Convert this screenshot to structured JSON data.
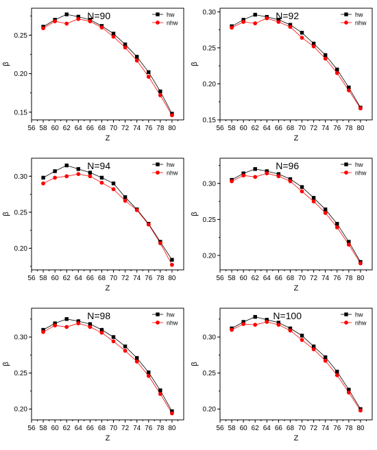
{
  "figure": {
    "legend_hw": "hw",
    "legend_nhw": "nhw",
    "xlabel": "Z",
    "ylabel": "β"
  },
  "chart_data": [
    {
      "type": "scatter",
      "title": "N=90",
      "xlabel": "Z",
      "ylabel": "β",
      "xlim": [
        56,
        82
      ],
      "ylim": [
        0.14,
        0.285
      ],
      "xticks": [
        56,
        58,
        60,
        62,
        64,
        66,
        68,
        70,
        72,
        74,
        76,
        78,
        80
      ],
      "yticks": [
        0.15,
        0.2,
        0.25
      ],
      "x": [
        58,
        60,
        62,
        64,
        66,
        68,
        70,
        72,
        74,
        76,
        78,
        80
      ],
      "series": [
        {
          "name": "hw",
          "color": "#000000",
          "marker": "square",
          "values": [
            0.261,
            0.27,
            0.277,
            0.274,
            0.27,
            0.262,
            0.252,
            0.238,
            0.222,
            0.202,
            0.177,
            0.148
          ]
        },
        {
          "name": "nhw",
          "color": "#ff0000",
          "marker": "circle",
          "values": [
            0.259,
            0.268,
            0.265,
            0.271,
            0.268,
            0.26,
            0.248,
            0.234,
            0.217,
            0.196,
            0.172,
            0.146
          ]
        }
      ],
      "legend": "top-right",
      "grid": false
    },
    {
      "type": "scatter",
      "title": "N=92",
      "xlabel": "Z",
      "ylabel": "β",
      "xlim": [
        56,
        82
      ],
      "ylim": [
        0.15,
        0.305
      ],
      "xticks": [
        56,
        58,
        60,
        62,
        64,
        66,
        68,
        70,
        72,
        74,
        76,
        78,
        80
      ],
      "yticks": [
        0.15,
        0.2,
        0.25,
        0.3
      ],
      "x": [
        58,
        60,
        62,
        64,
        66,
        68,
        70,
        72,
        74,
        76,
        78,
        80
      ],
      "series": [
        {
          "name": "hw",
          "color": "#000000",
          "marker": "square",
          "values": [
            0.28,
            0.289,
            0.296,
            0.293,
            0.289,
            0.282,
            0.271,
            0.256,
            0.24,
            0.22,
            0.195,
            0.167
          ]
        },
        {
          "name": "nhw",
          "color": "#ff0000",
          "marker": "circle",
          "values": [
            0.278,
            0.286,
            0.284,
            0.291,
            0.286,
            0.279,
            0.264,
            0.252,
            0.235,
            0.215,
            0.191,
            0.166
          ]
        }
      ],
      "legend": "top-right",
      "grid": false
    },
    {
      "type": "scatter",
      "title": "N=94",
      "xlabel": "Z",
      "ylabel": "β",
      "xlim": [
        56,
        82
      ],
      "ylim": [
        0.17,
        0.325
      ],
      "xticks": [
        56,
        58,
        60,
        62,
        64,
        66,
        68,
        70,
        72,
        74,
        76,
        78,
        80
      ],
      "yticks": [
        0.2,
        0.25,
        0.3
      ],
      "x": [
        58,
        60,
        62,
        64,
        66,
        68,
        70,
        72,
        74,
        76,
        78,
        80
      ],
      "series": [
        {
          "name": "hw",
          "color": "#000000",
          "marker": "square",
          "values": [
            0.298,
            0.307,
            0.315,
            0.31,
            0.305,
            0.298,
            0.29,
            0.271,
            0.254,
            0.234,
            0.209,
            0.184
          ]
        },
        {
          "name": "nhw",
          "color": "#ff0000",
          "marker": "circle",
          "values": [
            0.29,
            0.298,
            0.3,
            0.303,
            0.3,
            0.291,
            0.282,
            0.266,
            0.253,
            0.233,
            0.207,
            0.177
          ]
        }
      ],
      "legend": "top-right",
      "grid": false
    },
    {
      "type": "scatter",
      "title": "N=96",
      "xlabel": "Z",
      "ylabel": "β",
      "xlim": [
        56,
        82
      ],
      "ylim": [
        0.18,
        0.335
      ],
      "xticks": [
        56,
        58,
        60,
        62,
        64,
        66,
        68,
        70,
        72,
        74,
        76,
        78,
        80
      ],
      "yticks": [
        0.2,
        0.25,
        0.3
      ],
      "x": [
        58,
        60,
        62,
        64,
        66,
        68,
        70,
        72,
        74,
        76,
        78,
        80
      ],
      "series": [
        {
          "name": "hw",
          "color": "#000000",
          "marker": "square",
          "values": [
            0.305,
            0.314,
            0.32,
            0.317,
            0.313,
            0.306,
            0.295,
            0.28,
            0.264,
            0.244,
            0.219,
            0.191
          ]
        },
        {
          "name": "nhw",
          "color": "#ff0000",
          "marker": "circle",
          "values": [
            0.303,
            0.311,
            0.309,
            0.314,
            0.31,
            0.303,
            0.289,
            0.275,
            0.259,
            0.239,
            0.215,
            0.189
          ]
        }
      ],
      "legend": "top-right",
      "grid": false
    },
    {
      "type": "scatter",
      "title": "N=98",
      "xlabel": "Z",
      "ylabel": "β",
      "xlim": [
        56,
        82
      ],
      "ylim": [
        0.185,
        0.34
      ],
      "xticks": [
        56,
        58,
        60,
        62,
        64,
        66,
        68,
        70,
        72,
        74,
        76,
        78,
        80
      ],
      "yticks": [
        0.2,
        0.25,
        0.3
      ],
      "x": [
        58,
        60,
        62,
        64,
        66,
        68,
        70,
        72,
        74,
        76,
        78,
        80
      ],
      "series": [
        {
          "name": "hw",
          "color": "#000000",
          "marker": "square",
          "values": [
            0.31,
            0.319,
            0.325,
            0.322,
            0.318,
            0.31,
            0.3,
            0.287,
            0.271,
            0.251,
            0.226,
            0.197
          ]
        },
        {
          "name": "nhw",
          "color": "#ff0000",
          "marker": "circle",
          "values": [
            0.307,
            0.316,
            0.314,
            0.319,
            0.314,
            0.306,
            0.294,
            0.281,
            0.266,
            0.246,
            0.221,
            0.194
          ]
        }
      ],
      "legend": "top-right",
      "grid": false
    },
    {
      "type": "scatter",
      "title": "N=100",
      "xlabel": "Z",
      "ylabel": "β",
      "xlim": [
        56,
        82
      ],
      "ylim": [
        0.185,
        0.34
      ],
      "xticks": [
        56,
        58,
        60,
        62,
        64,
        66,
        68,
        70,
        72,
        74,
        76,
        78,
        80
      ],
      "yticks": [
        0.2,
        0.25,
        0.3
      ],
      "x": [
        58,
        60,
        62,
        64,
        66,
        68,
        70,
        72,
        74,
        76,
        78,
        80
      ],
      "series": [
        {
          "name": "hw",
          "color": "#000000",
          "marker": "square",
          "values": [
            0.312,
            0.321,
            0.328,
            0.324,
            0.32,
            0.312,
            0.302,
            0.287,
            0.272,
            0.252,
            0.227,
            0.2
          ]
        },
        {
          "name": "nhw",
          "color": "#ff0000",
          "marker": "circle",
          "values": [
            0.31,
            0.318,
            0.317,
            0.321,
            0.317,
            0.309,
            0.296,
            0.283,
            0.267,
            0.247,
            0.223,
            0.198
          ]
        }
      ],
      "legend": "top-right",
      "grid": false
    }
  ]
}
